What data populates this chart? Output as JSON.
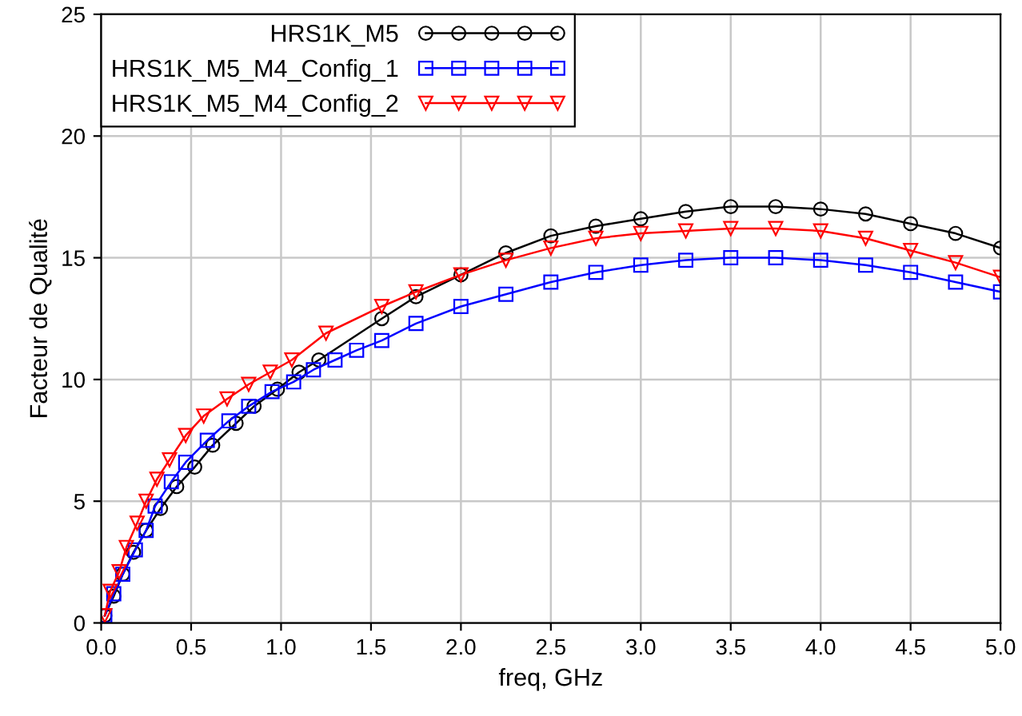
{
  "chart_data": {
    "type": "line",
    "xlabel": "freq, GHz",
    "ylabel": "Facteur de Qualité",
    "xlim": [
      0,
      5
    ],
    "ylim": [
      0,
      25
    ],
    "xticks": [
      {
        "value": 0,
        "label": "0.0"
      },
      {
        "value": 0.5,
        "label": "0.5"
      },
      {
        "value": 1,
        "label": "1.0"
      },
      {
        "value": 1.5,
        "label": "1.5"
      },
      {
        "value": 2,
        "label": "2.0"
      },
      {
        "value": 2.5,
        "label": "2.5"
      },
      {
        "value": 3,
        "label": "3.0"
      },
      {
        "value": 3.5,
        "label": "3.5"
      },
      {
        "value": 4,
        "label": "4.0"
      },
      {
        "value": 4.5,
        "label": "4.5"
      },
      {
        "value": 5,
        "label": "5.0"
      }
    ],
    "yticks": [
      0,
      5,
      10,
      15,
      20,
      25
    ],
    "grid": true,
    "legend": "top left",
    "series": [
      {
        "name": "HRS1K_M5",
        "color": "#000000",
        "marker": "circle",
        "x": [
          0.02,
          0.07,
          0.12,
          0.18,
          0.25,
          0.33,
          0.42,
          0.52,
          0.62,
          0.75,
          0.85,
          0.98,
          1.1,
          1.21,
          1.56,
          1.75,
          2.0,
          2.25,
          2.5,
          2.75,
          3.0,
          3.25,
          3.5,
          3.75,
          4.0,
          4.25,
          4.5,
          4.75,
          5.0
        ],
        "values": [
          0.3,
          1.1,
          2.0,
          2.9,
          3.8,
          4.7,
          5.6,
          6.4,
          7.3,
          8.2,
          8.9,
          9.6,
          10.3,
          10.8,
          12.5,
          13.4,
          14.3,
          15.2,
          15.9,
          16.3,
          16.6,
          16.9,
          17.1,
          17.1,
          17.0,
          16.8,
          16.4,
          16.0,
          15.4
        ]
      },
      {
        "name": "HRS1K_M5_M4_Config_1",
        "color": "#0000ff",
        "marker": "square",
        "x": [
          0.02,
          0.07,
          0.12,
          0.19,
          0.25,
          0.3,
          0.39,
          0.47,
          0.59,
          0.71,
          0.82,
          0.95,
          1.07,
          1.18,
          1.3,
          1.42,
          1.56,
          1.75,
          2.0,
          2.25,
          2.5,
          2.75,
          3.0,
          3.25,
          3.5,
          3.75,
          4.0,
          4.25,
          4.5,
          4.75,
          5.0
        ],
        "values": [
          0.3,
          1.2,
          2.0,
          3.0,
          3.8,
          4.8,
          5.8,
          6.6,
          7.5,
          8.3,
          8.9,
          9.5,
          9.9,
          10.4,
          10.8,
          11.2,
          11.6,
          12.3,
          13.0,
          13.5,
          14.0,
          14.4,
          14.7,
          14.9,
          15.0,
          15.0,
          14.9,
          14.7,
          14.4,
          14.0,
          13.6
        ]
      },
      {
        "name": "HRS1K_M5_M4_Config_2",
        "color": "#ff0000",
        "marker": "triangle",
        "x": [
          0.02,
          0.05,
          0.1,
          0.14,
          0.2,
          0.25,
          0.31,
          0.38,
          0.47,
          0.57,
          0.7,
          0.82,
          0.94,
          1.06,
          1.25,
          1.56,
          1.75,
          2.0,
          2.25,
          2.5,
          2.75,
          3.0,
          3.25,
          3.5,
          3.75,
          4.0,
          4.25,
          4.5,
          4.75,
          5.0
        ],
        "values": [
          0.3,
          1.3,
          2.1,
          3.1,
          4.1,
          5.0,
          5.9,
          6.7,
          7.7,
          8.5,
          9.2,
          9.8,
          10.3,
          10.8,
          11.9,
          13.0,
          13.6,
          14.3,
          14.9,
          15.4,
          15.8,
          16.0,
          16.1,
          16.2,
          16.2,
          16.1,
          15.8,
          15.3,
          14.8,
          14.2
        ]
      }
    ]
  }
}
